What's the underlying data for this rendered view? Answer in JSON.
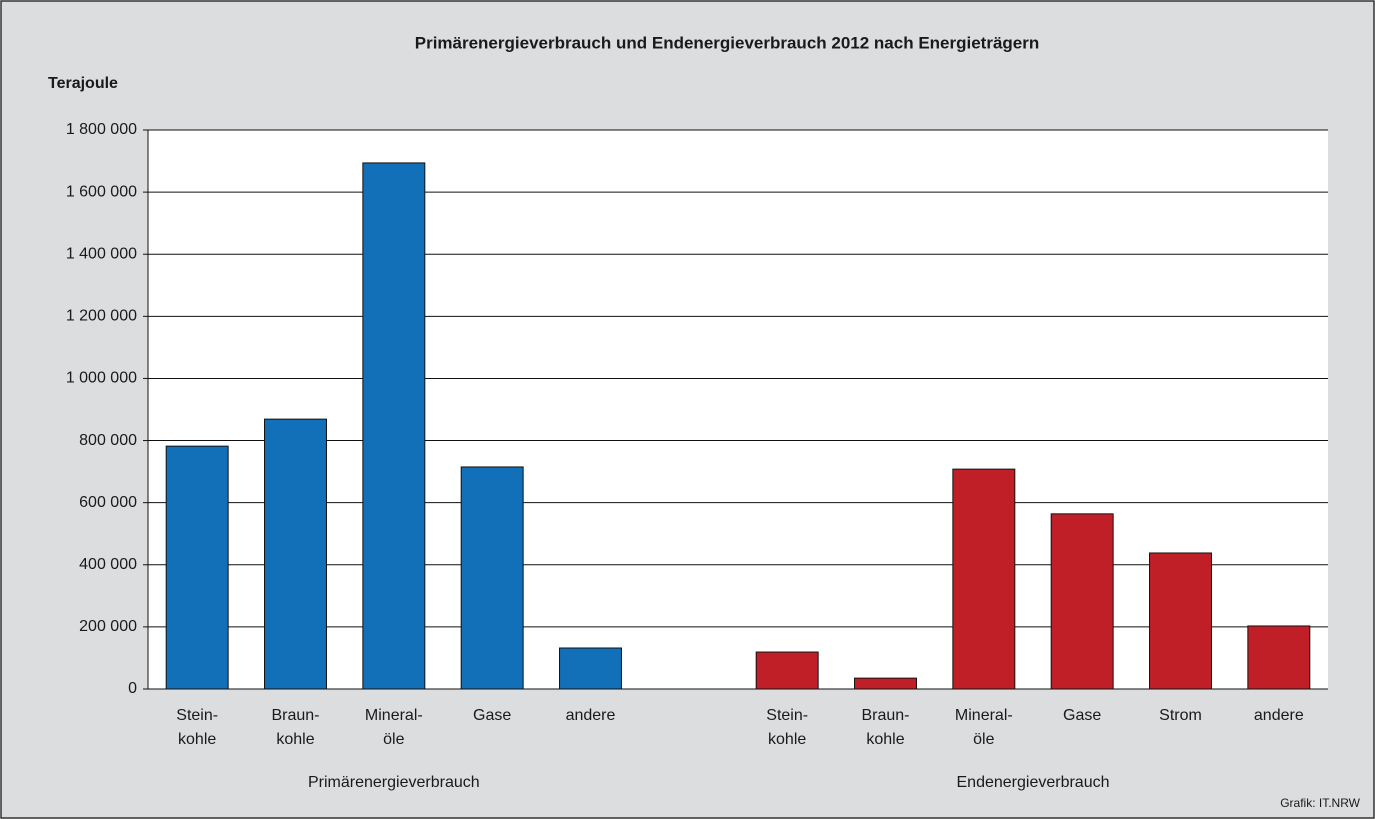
{
  "chart_data": {
    "type": "bar",
    "title": "Primärenergieverbrauch und Endenergieverbrauch 2012 nach Energieträgern",
    "y_label": "Terajoule",
    "source": "Grafik: IT.NRW",
    "categories": [
      "Stein-\nkohle",
      "Braun-\nkohle",
      "Mineral-\nöle",
      "Gase",
      "andere",
      null,
      "Stein-\nkohle",
      "Braun-\nkohle",
      "Mineral-\nöle",
      "Gase",
      "Strom",
      "andere"
    ],
    "series": [
      {
        "name": "Primärenergieverbrauch",
        "color": "#1170b8",
        "values": [
          782000,
          869000,
          1694000,
          715000,
          132000,
          null,
          null,
          null,
          null,
          null,
          null,
          null
        ]
      },
      {
        "name": "Endenergieverbrauch",
        "color": "#c11f28",
        "values": [
          null,
          null,
          null,
          null,
          null,
          null,
          119000,
          35000,
          708000,
          564000,
          438000,
          203000
        ]
      }
    ],
    "ylim": [
      0,
      1800000
    ],
    "yticks": [
      0,
      {
        "value": 200000,
        "label": "200 000"
      },
      {
        "value": 400000,
        "label": "400 000"
      },
      {
        "value": 600000,
        "label": "600 000"
      },
      {
        "value": 800000,
        "label": "800 000"
      },
      {
        "value": 1000000,
        "label": "1 000 000"
      },
      {
        "value": 1200000,
        "label": "1 200 000"
      },
      {
        "value": 1400000,
        "label": "1 400 000"
      },
      {
        "value": 1600000,
        "label": "1 600 000"
      },
      {
        "value": 1800000,
        "label": "1 800 000"
      }
    ],
    "grid": true
  }
}
